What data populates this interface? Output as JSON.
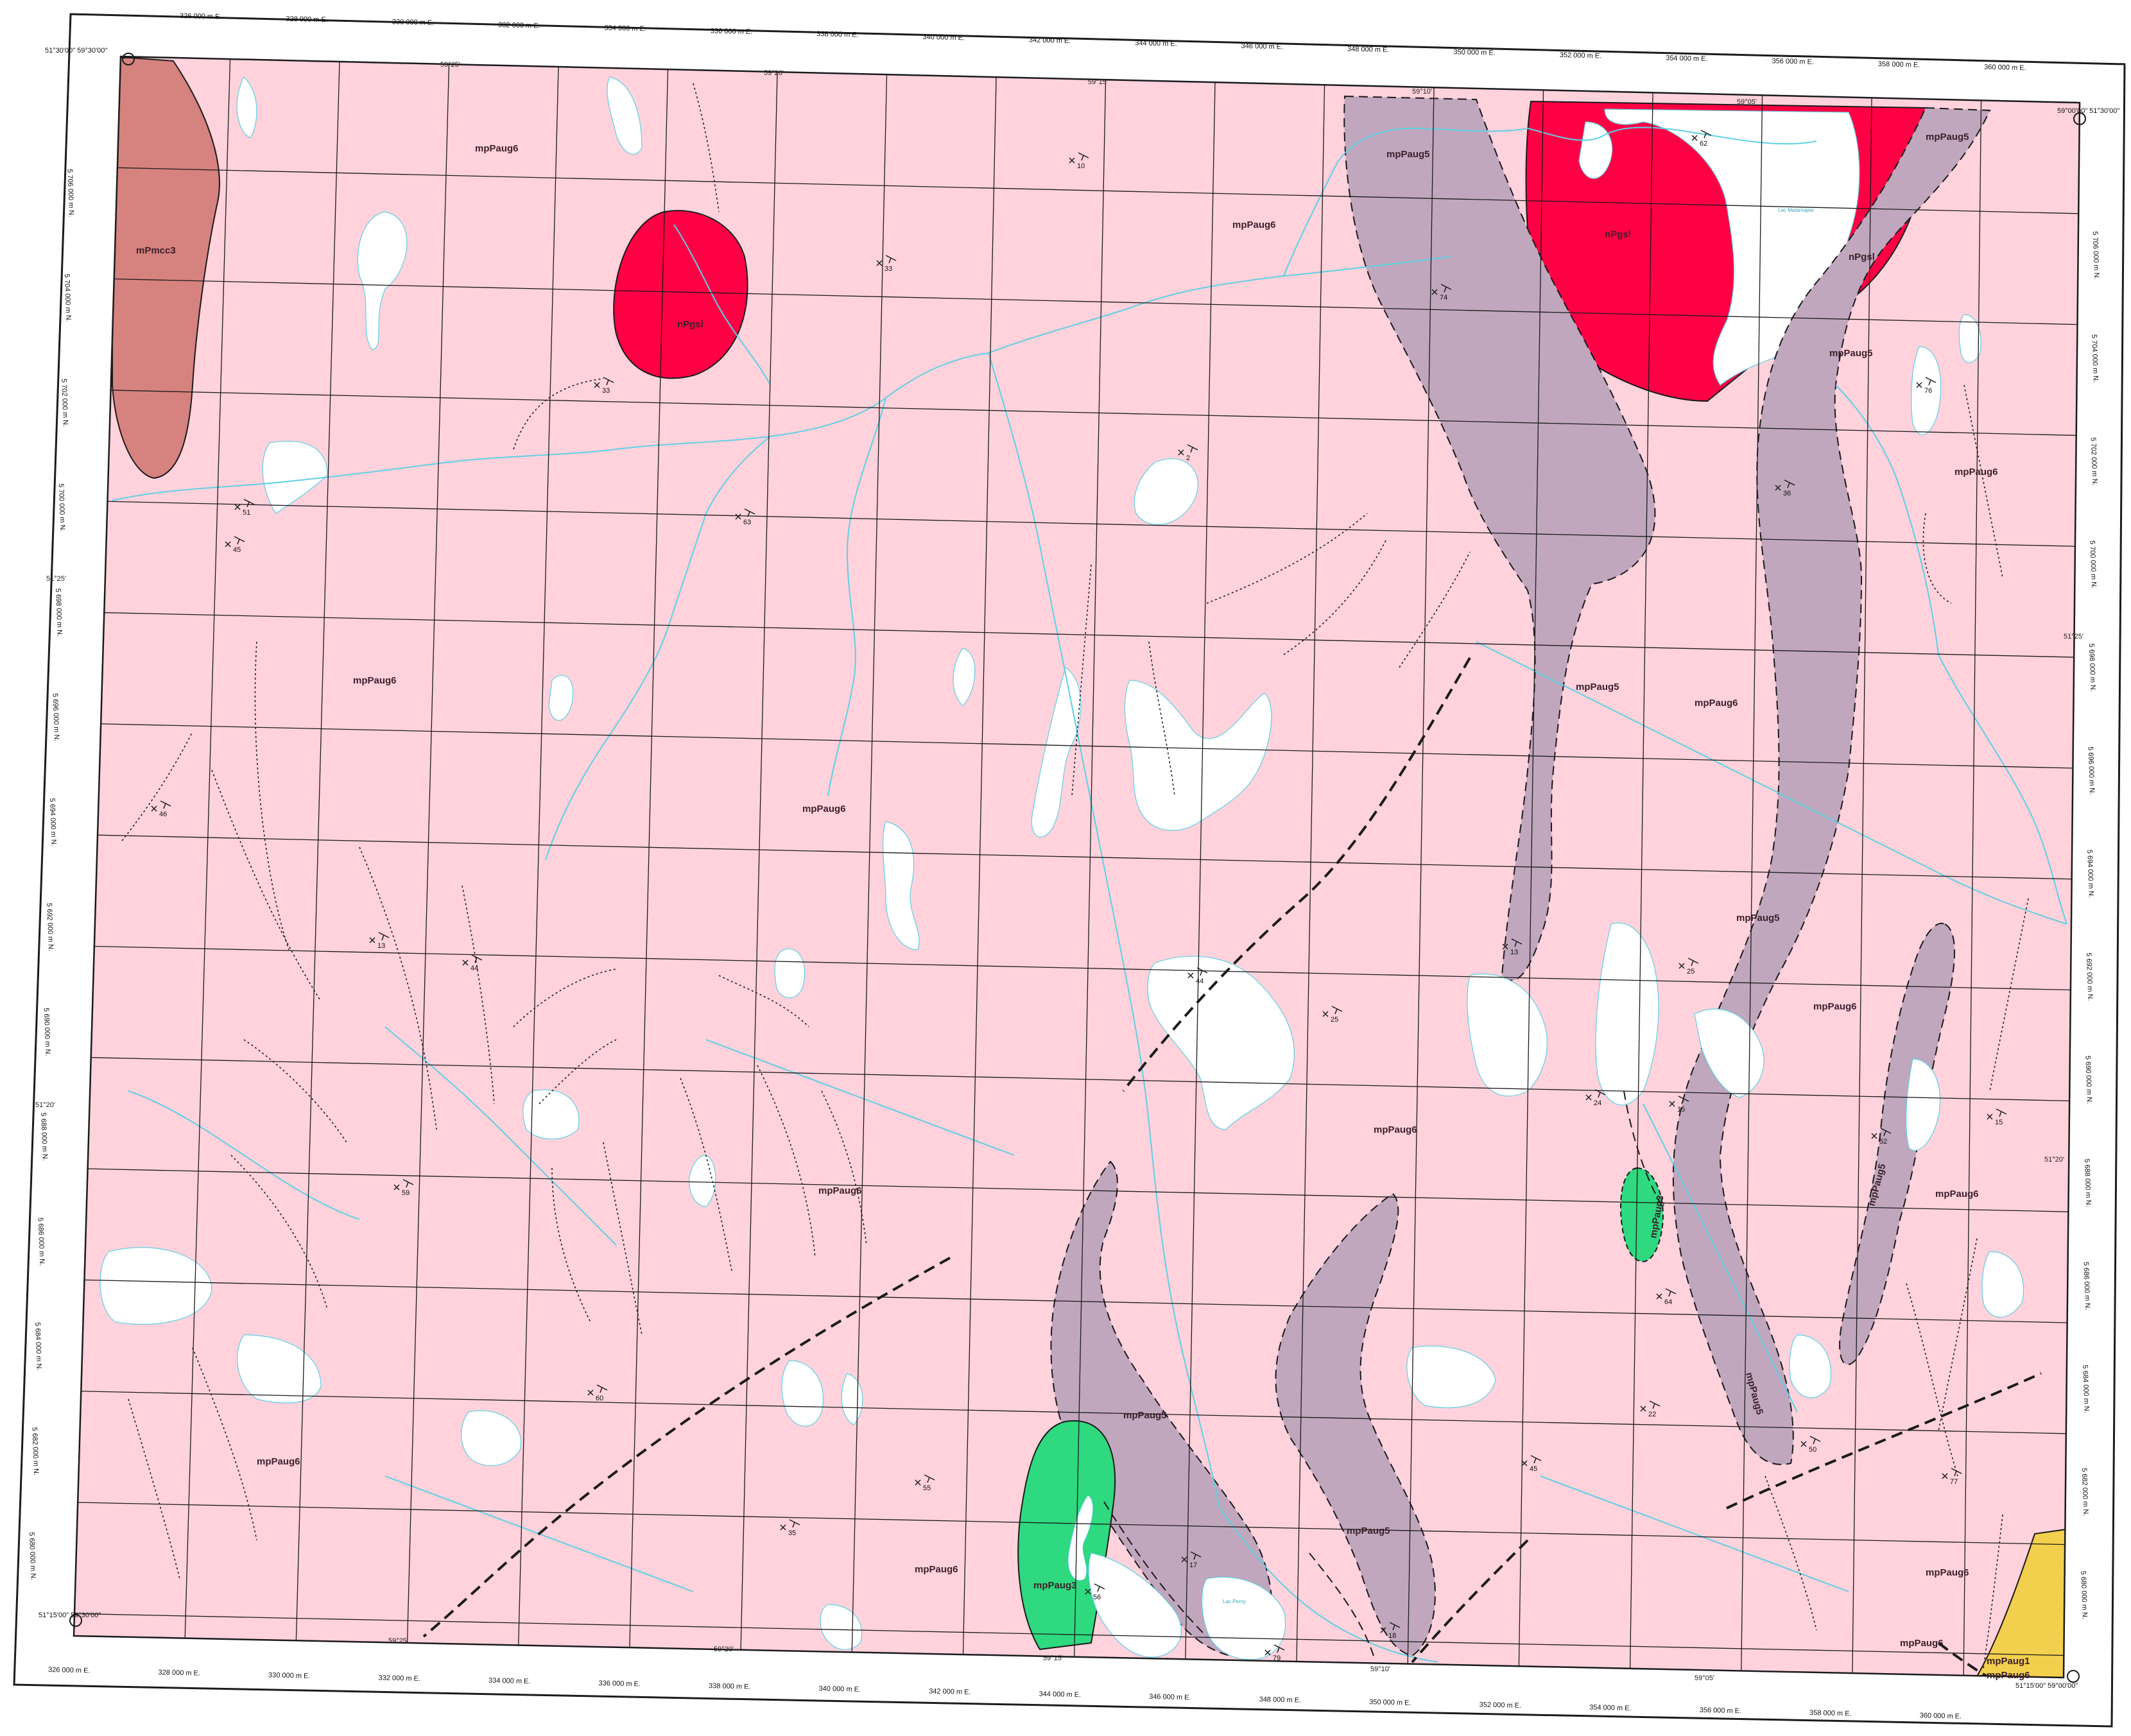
{
  "map": {
    "colors": {
      "background_unit": "#ffd2dc",
      "metavolcanic_band": "#c0a7bd",
      "granite_intrusion": "#ff0045",
      "west_strip": "#d6827e",
      "green_unit": "#2ed97f",
      "yellow_unit": "#f2cf4d",
      "water": "#ffffff",
      "rivers": "#5fd0e3",
      "grid": "#1b1b1b"
    },
    "units": [
      {
        "id": "mpaug6",
        "label": "mpPaug6"
      },
      {
        "id": "mpaug5",
        "label": "mpPaug5"
      },
      {
        "id": "mpaug3",
        "label": "mpPaug3"
      },
      {
        "id": "mpaug1",
        "label": "mpPaug1"
      },
      {
        "id": "mpmcc3",
        "label": "mPmcc3"
      },
      {
        "id": "npgsl",
        "label": "nPgsl"
      }
    ],
    "unit_labels": {
      "u1": "mpPaug6",
      "u2": "mPmcc3",
      "u3": "nPgsl",
      "u4": "mpPaug6",
      "u5": "mpPaug5",
      "u6": "mpPaug6",
      "u7": "nPgsl",
      "u8": "nPgsl",
      "u9": "mpPaug5",
      "u10": "mpPaug5",
      "u11": "mpPaug6",
      "u12": "mpPaug6",
      "u13": "mpPaug6",
      "u14": "mpPaug5",
      "u15": "mpPaug6",
      "u16": "mpPaug5",
      "u17": "mpPaug6",
      "u18": "mpPaug6",
      "u19": "mpPaug6",
      "u20": "mpPaug5",
      "u21": "mpPaug5",
      "u22": "mpPaug3",
      "u23": "mpPaug6",
      "u24": "mpPaug6",
      "u25": "mpPaug1",
      "u26": "mpPaug6",
      "u27": "mpPaug5",
      "u28": "mpPaug3",
      "u29": "mpPaug5",
      "u30": "mpPaug6",
      "u31": "mpPaug6"
    },
    "easting_labels": [
      "326 000 m E.",
      "328 000 m E.",
      "330 000 m E.",
      "332 000 m E.",
      "334 000 m E.",
      "336 000 m E.",
      "338 000 m E.",
      "340 000 m E.",
      "342 000 m E.",
      "344 000 m E.",
      "346 000 m E.",
      "348 000 m E.",
      "350 000 m E.",
      "352 000 m E.",
      "354 000 m E.",
      "356 000 m E.",
      "358 000 m E.",
      "360 000 m E."
    ],
    "northing_labels": [
      "5 706 000 m N.",
      "5 704 000 m N.",
      "5 702 000 m N.",
      "5 700 000 m N.",
      "5 698 000 m N.",
      "5 696 000 m N.",
      "5 694 000 m N.",
      "5 692 000 m N.",
      "5 690 000 m N.",
      "5 688 000 m N.",
      "5 686 000 m N.",
      "5 684 000 m N.",
      "5 682 000 m N.",
      "5 680 000 m N."
    ],
    "geo_labels": {
      "top": [
        "59°25'",
        "59°20'",
        "59°15'",
        "59°10'",
        "59°05'"
      ],
      "bottom": [
        "59°25'",
        "59°20'",
        "59°15'",
        "59°10'",
        "59°05'"
      ],
      "left": "51°25'",
      "right": "51°25'",
      "left2": "51°20'",
      "right2": "51°20'"
    },
    "corners": {
      "nw": "51°30'00\" 59°30'00\"",
      "ne": "59°00'00\" 51°30'00\"",
      "sw": "51°15'00\" 59°30'00\"",
      "se": "51°15'00\" 59°00'00\""
    },
    "lake_names": [
      "Lac Matamajaw",
      "Lac Perny"
    ],
    "dips": [
      "62",
      "33",
      "10",
      "33",
      "74",
      "2",
      "51",
      "45",
      "63",
      "36",
      "76",
      "46",
      "13",
      "44",
      "13",
      "25",
      "44",
      "25",
      "24",
      "15",
      "52",
      "64",
      "59",
      "60",
      "22",
      "45",
      "50",
      "77",
      "55",
      "35",
      "56",
      "17",
      "79",
      "18",
      "15"
    ]
  }
}
